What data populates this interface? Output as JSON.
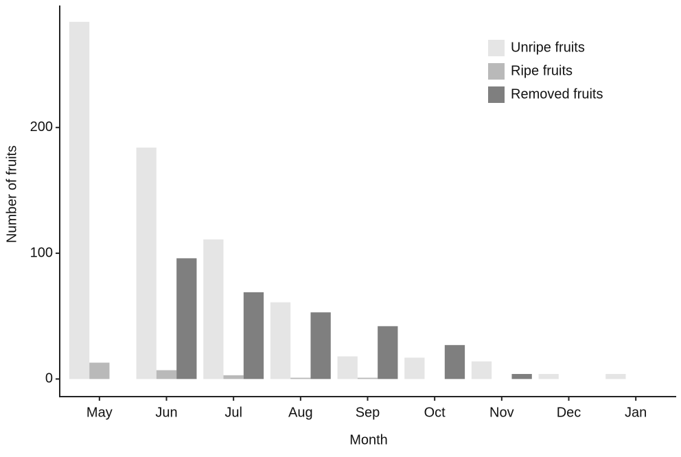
{
  "chart_data": {
    "type": "bar",
    "x_label": "Month",
    "y_label": "Number of fruits",
    "categories": [
      "May",
      "Jun",
      "Jul",
      "Aug",
      "Sep",
      "Oct",
      "Nov",
      "Dec",
      "Jan"
    ],
    "series": [
      {
        "name": "Unripe fruits",
        "color": "#e5e5e5",
        "values": [
          284,
          184,
          111,
          61,
          18,
          17,
          14,
          4,
          4
        ]
      },
      {
        "name": "Ripe fruits",
        "color": "#b9b9b9",
        "values": [
          13,
          7,
          3,
          1,
          1,
          0,
          0,
          0,
          0
        ]
      },
      {
        "name": "Removed fruits",
        "color": "#7f7f7f",
        "values": [
          0,
          96,
          69,
          53,
          42,
          27,
          4,
          0,
          0
        ]
      }
    ],
    "ylim": [
      -14,
      297
    ],
    "yticks": [
      0,
      100,
      200
    ],
    "grid": false,
    "legend_position": "upper right"
  }
}
